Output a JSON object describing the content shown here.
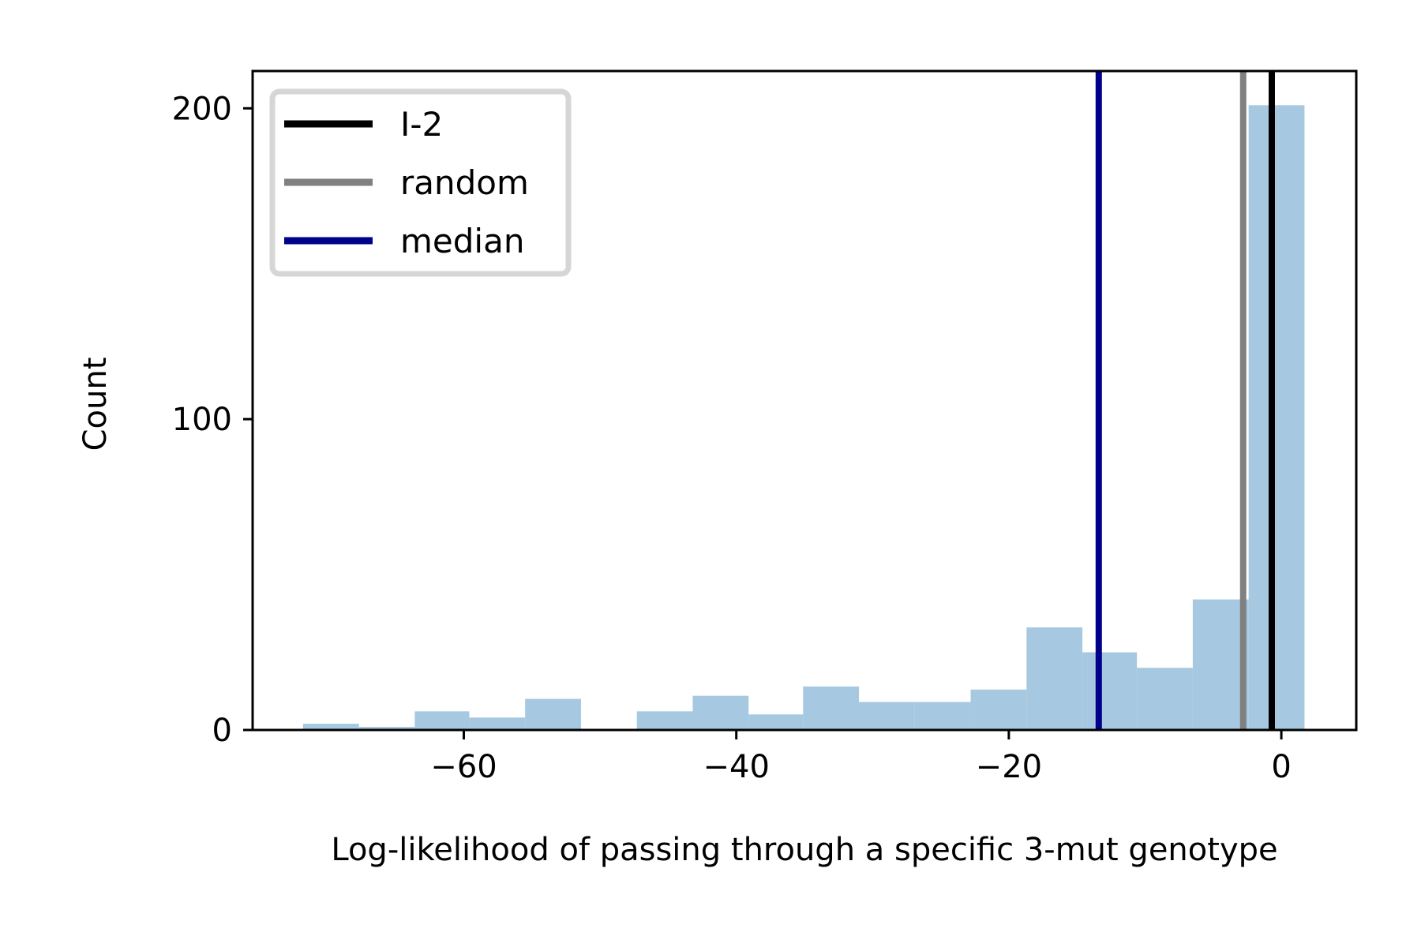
{
  "chart_data": {
    "type": "bar",
    "xlabel": "Log-likelihood of passing through a specific 3-mut genotype",
    "ylabel": "Count",
    "xlim": [
      -75.5,
      5.5
    ],
    "ylim": [
      0,
      212
    ],
    "xticks": [
      {
        "value": -60,
        "label": "−60"
      },
      {
        "value": -40,
        "label": "−40"
      },
      {
        "value": -20,
        "label": "−20"
      },
      {
        "value": 0,
        "label": "0"
      }
    ],
    "yticks": [
      {
        "value": 0,
        "label": "0"
      },
      {
        "value": 100,
        "label": "100"
      },
      {
        "value": 200,
        "label": "200"
      }
    ],
    "grid": false,
    "legend_position": "top-left",
    "bar_color": "#a6c8e0",
    "bins": [
      {
        "x0": -71.8,
        "x1": -67.7,
        "count": 2
      },
      {
        "x0": -67.7,
        "x1": -63.6,
        "count": 1
      },
      {
        "x0": -63.6,
        "x1": -59.6,
        "count": 6
      },
      {
        "x0": -59.6,
        "x1": -55.5,
        "count": 4
      },
      {
        "x0": -55.5,
        "x1": -51.4,
        "count": 10
      },
      {
        "x0": -51.4,
        "x1": -47.3,
        "count": 0
      },
      {
        "x0": -47.3,
        "x1": -43.2,
        "count": 6
      },
      {
        "x0": -43.2,
        "x1": -39.1,
        "count": 11
      },
      {
        "x0": -39.1,
        "x1": -35.1,
        "count": 5
      },
      {
        "x0": -35.1,
        "x1": -31.0,
        "count": 14
      },
      {
        "x0": -31.0,
        "x1": -26.9,
        "count": 9
      },
      {
        "x0": -26.9,
        "x1": -22.8,
        "count": 9
      },
      {
        "x0": -22.8,
        "x1": -18.7,
        "count": 13
      },
      {
        "x0": -18.7,
        "x1": -14.6,
        "count": 33
      },
      {
        "x0": -14.6,
        "x1": -10.6,
        "count": 25
      },
      {
        "x0": -10.6,
        "x1": -6.5,
        "count": 20
      },
      {
        "x0": -6.5,
        "x1": -2.4,
        "count": 42
      },
      {
        "x0": -2.4,
        "x1": 1.7,
        "count": 201
      }
    ],
    "vlines": [
      {
        "name": "I-2",
        "x": -0.7,
        "color": "#000000"
      },
      {
        "name": "random",
        "x": -2.8,
        "color": "#808080"
      },
      {
        "name": "median",
        "x": -13.4,
        "color": "#00008b"
      }
    ]
  }
}
